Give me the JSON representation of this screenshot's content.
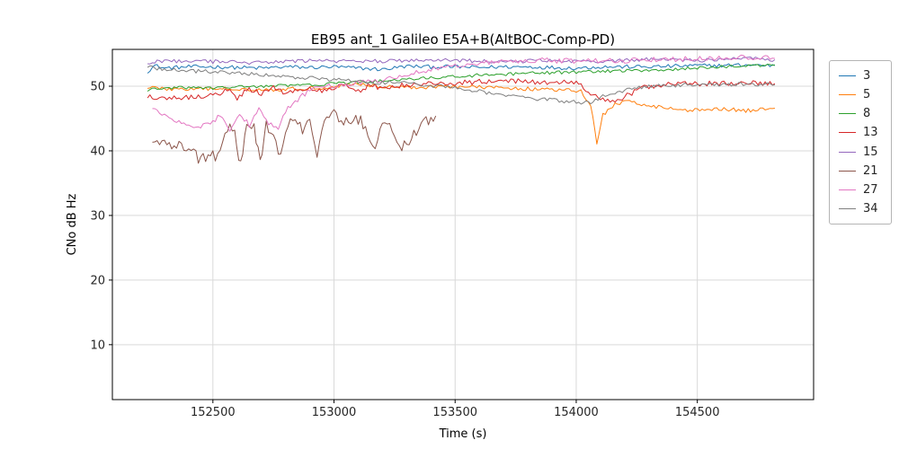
{
  "chart_data": {
    "type": "line",
    "title": "EB95 ant_1 Galileo E5A+B(AltBOC-Comp-PD)",
    "xlabel": "Time (s)",
    "ylabel": "CNo dB Hz",
    "xlim": [
      152085,
      154980
    ],
    "ylim": [
      1.5,
      55.7
    ],
    "xticks": [
      152500,
      153000,
      153500,
      154000,
      154500
    ],
    "yticks": [
      10,
      20,
      30,
      40,
      50
    ],
    "grid": true,
    "grid_color": "#d9d9d9",
    "legend_position": "outside-right",
    "series": [
      {
        "name": "3",
        "color": "#1f77b4",
        "noise": 0.3,
        "points": [
          [
            152230,
            52.3
          ],
          [
            152260,
            53.2
          ],
          [
            152300,
            52.8
          ],
          [
            152400,
            53.0
          ],
          [
            152500,
            53.0
          ],
          [
            152600,
            52.9
          ],
          [
            152700,
            52.8
          ],
          [
            152800,
            53.0
          ],
          [
            152900,
            52.9
          ],
          [
            153000,
            53.0
          ],
          [
            153100,
            52.8
          ],
          [
            153200,
            52.6
          ],
          [
            153300,
            53.1
          ],
          [
            153400,
            53.0
          ],
          [
            153500,
            53.0
          ],
          [
            153600,
            52.9
          ],
          [
            153700,
            53.0
          ],
          [
            153800,
            53.0
          ],
          [
            153900,
            52.9
          ],
          [
            154000,
            52.8
          ],
          [
            154100,
            53.0
          ],
          [
            154200,
            53.0
          ],
          [
            154300,
            53.0
          ],
          [
            154400,
            53.1
          ],
          [
            154500,
            53.2
          ],
          [
            154600,
            53.2
          ],
          [
            154700,
            53.3
          ],
          [
            154820,
            53.2
          ]
        ]
      },
      {
        "name": "5",
        "color": "#ff7f0e",
        "noise": 0.3,
        "points": [
          [
            152230,
            49.9
          ],
          [
            152300,
            49.6
          ],
          [
            152400,
            49.5
          ],
          [
            152500,
            49.6
          ],
          [
            152600,
            49.6
          ],
          [
            152700,
            49.5
          ],
          [
            152800,
            49.5
          ],
          [
            152900,
            49.7
          ],
          [
            153000,
            49.9
          ],
          [
            153080,
            50.4
          ],
          [
            153150,
            50.1
          ],
          [
            153250,
            49.9
          ],
          [
            153350,
            49.8
          ],
          [
            153450,
            50.0
          ],
          [
            153550,
            49.9
          ],
          [
            153650,
            49.8
          ],
          [
            153750,
            49.7
          ],
          [
            153850,
            49.5
          ],
          [
            153950,
            49.4
          ],
          [
            154020,
            49.2
          ],
          [
            154060,
            47.0
          ],
          [
            154085,
            41.3
          ],
          [
            154110,
            45.5
          ],
          [
            154160,
            47.3
          ],
          [
            154220,
            47.6
          ],
          [
            154280,
            47.2
          ],
          [
            154340,
            46.8
          ],
          [
            154400,
            46.5
          ],
          [
            154460,
            46.3
          ],
          [
            154520,
            46.3
          ],
          [
            154580,
            46.6
          ],
          [
            154640,
            46.4
          ],
          [
            154700,
            46.2
          ],
          [
            154760,
            46.4
          ],
          [
            154820,
            46.6
          ]
        ]
      },
      {
        "name": "8",
        "color": "#2ca02c",
        "noise": 0.25,
        "points": [
          [
            152230,
            49.4
          ],
          [
            152300,
            49.7
          ],
          [
            152400,
            49.8
          ],
          [
            152500,
            49.7
          ],
          [
            152600,
            49.9
          ],
          [
            152700,
            50.0
          ],
          [
            152800,
            50.1
          ],
          [
            152900,
            50.2
          ],
          [
            153000,
            50.4
          ],
          [
            153100,
            50.6
          ],
          [
            153200,
            50.8
          ],
          [
            153300,
            51.0
          ],
          [
            153400,
            51.3
          ],
          [
            153500,
            51.5
          ],
          [
            153600,
            51.7
          ],
          [
            153700,
            51.8
          ],
          [
            153800,
            52.0
          ],
          [
            153900,
            52.1
          ],
          [
            154000,
            52.2
          ],
          [
            154100,
            52.3
          ],
          [
            154200,
            52.4
          ],
          [
            154300,
            52.5
          ],
          [
            154400,
            52.6
          ],
          [
            154500,
            52.8
          ],
          [
            154600,
            53.0
          ],
          [
            154700,
            53.2
          ],
          [
            154820,
            53.3
          ]
        ]
      },
      {
        "name": "13",
        "color": "#d62728",
        "noise": 0.4,
        "points": [
          [
            152230,
            48.4
          ],
          [
            152300,
            48.2
          ],
          [
            152400,
            48.3
          ],
          [
            152500,
            48.6
          ],
          [
            152560,
            49.4
          ],
          [
            152600,
            48.2
          ],
          [
            152650,
            49.6
          ],
          [
            152700,
            48.8
          ],
          [
            152750,
            49.8
          ],
          [
            152800,
            49.0
          ],
          [
            152850,
            49.4
          ],
          [
            152900,
            49.6
          ],
          [
            152950,
            49.2
          ],
          [
            153000,
            49.8
          ],
          [
            153050,
            50.4
          ],
          [
            153100,
            49.2
          ],
          [
            153150,
            50.2
          ],
          [
            153200,
            49.6
          ],
          [
            153250,
            50.0
          ],
          [
            153300,
            50.2
          ],
          [
            153400,
            50.4
          ],
          [
            153500,
            50.5
          ],
          [
            153600,
            50.7
          ],
          [
            153700,
            50.8
          ],
          [
            153800,
            50.7
          ],
          [
            153900,
            50.6
          ],
          [
            154000,
            50.5
          ],
          [
            154060,
            49.0
          ],
          [
            154110,
            47.8
          ],
          [
            154160,
            47.6
          ],
          [
            154220,
            48.8
          ],
          [
            154280,
            49.8
          ],
          [
            154340,
            50.2
          ],
          [
            154400,
            50.3
          ],
          [
            154500,
            50.4
          ],
          [
            154600,
            50.4
          ],
          [
            154700,
            50.5
          ],
          [
            154820,
            50.4
          ]
        ]
      },
      {
        "name": "15",
        "color": "#9467bd",
        "noise": 0.3,
        "points": [
          [
            152230,
            53.6
          ],
          [
            152300,
            54.0
          ],
          [
            152400,
            53.8
          ],
          [
            152500,
            53.8
          ],
          [
            152600,
            53.7
          ],
          [
            152700,
            53.6
          ],
          [
            152800,
            53.8
          ],
          [
            152900,
            54.0
          ],
          [
            153000,
            53.9
          ],
          [
            153100,
            53.8
          ],
          [
            153200,
            53.9
          ],
          [
            153300,
            54.0
          ],
          [
            153400,
            54.0
          ],
          [
            153500,
            54.0
          ],
          [
            153600,
            53.9
          ],
          [
            153700,
            53.8
          ],
          [
            153800,
            53.9
          ],
          [
            153900,
            54.0
          ],
          [
            154000,
            53.9
          ],
          [
            154100,
            53.8
          ],
          [
            154200,
            54.0
          ],
          [
            154300,
            54.2
          ],
          [
            154400,
            54.1
          ],
          [
            154500,
            54.0
          ],
          [
            154600,
            54.1
          ],
          [
            154700,
            54.3
          ],
          [
            154820,
            54.1
          ]
        ]
      },
      {
        "name": "21",
        "color": "#8c564b",
        "noise": 1.0,
        "points": [
          [
            152250,
            41.6
          ],
          [
            152300,
            41.2
          ],
          [
            152350,
            40.8
          ],
          [
            152400,
            40.3
          ],
          [
            152440,
            39.0
          ],
          [
            152480,
            38.7
          ],
          [
            152520,
            39.6
          ],
          [
            152560,
            43.8
          ],
          [
            152590,
            43.0
          ],
          [
            152615,
            37.6
          ],
          [
            152640,
            44.4
          ],
          [
            152670,
            43.2
          ],
          [
            152695,
            38.2
          ],
          [
            152720,
            44.0
          ],
          [
            152750,
            42.0
          ],
          [
            152780,
            39.5
          ],
          [
            152810,
            44.6
          ],
          [
            152840,
            45.0
          ],
          [
            152870,
            43.0
          ],
          [
            152900,
            44.2
          ],
          [
            152930,
            39.2
          ],
          [
            152960,
            45.2
          ],
          [
            153000,
            45.5
          ],
          [
            153040,
            44.0
          ],
          [
            153080,
            45.0
          ],
          [
            153120,
            44.4
          ],
          [
            153160,
            40.2
          ],
          [
            153200,
            44.6
          ],
          [
            153240,
            44.0
          ],
          [
            153270,
            40.6
          ],
          [
            153300,
            41.0
          ],
          [
            153340,
            43.2
          ],
          [
            153380,
            44.4
          ],
          [
            153420,
            45.4
          ]
        ]
      },
      {
        "name": "27",
        "color": "#e377c2",
        "noise": 0.4,
        "points": [
          [
            152250,
            46.6
          ],
          [
            152290,
            45.6
          ],
          [
            152330,
            44.8
          ],
          [
            152370,
            44.2
          ],
          [
            152410,
            43.9
          ],
          [
            152450,
            43.7
          ],
          [
            152490,
            44.3
          ],
          [
            152530,
            45.4
          ],
          [
            152570,
            43.2
          ],
          [
            152610,
            45.8
          ],
          [
            152650,
            44.0
          ],
          [
            152690,
            46.4
          ],
          [
            152730,
            44.2
          ],
          [
            152770,
            43.6
          ],
          [
            152810,
            46.8
          ],
          [
            152850,
            48.0
          ],
          [
            152900,
            49.4
          ],
          [
            152950,
            49.9
          ],
          [
            153050,
            50.3
          ],
          [
            153150,
            50.8
          ],
          [
            153250,
            51.4
          ],
          [
            153350,
            52.2
          ],
          [
            153450,
            53.0
          ],
          [
            153550,
            53.5
          ],
          [
            153700,
            53.8
          ],
          [
            153850,
            54.0
          ],
          [
            154000,
            53.9
          ],
          [
            154150,
            53.9
          ],
          [
            154300,
            54.1
          ],
          [
            154450,
            54.2
          ],
          [
            154600,
            54.3
          ],
          [
            154700,
            54.5
          ],
          [
            154820,
            54.3
          ]
        ]
      },
      {
        "name": "34",
        "color": "#7f7f7f",
        "noise": 0.3,
        "points": [
          [
            152230,
            52.9
          ],
          [
            152300,
            52.6
          ],
          [
            152400,
            52.4
          ],
          [
            152500,
            52.2
          ],
          [
            152600,
            52.0
          ],
          [
            152700,
            51.8
          ],
          [
            152800,
            51.5
          ],
          [
            152900,
            51.3
          ],
          [
            153000,
            51.0
          ],
          [
            153100,
            50.8
          ],
          [
            153200,
            50.5
          ],
          [
            153280,
            50.8
          ],
          [
            153360,
            50.2
          ],
          [
            153440,
            50.0
          ],
          [
            153520,
            49.7
          ],
          [
            153600,
            49.2
          ],
          [
            153680,
            48.7
          ],
          [
            153760,
            48.3
          ],
          [
            153840,
            48.0
          ],
          [
            153920,
            47.8
          ],
          [
            154000,
            47.5
          ],
          [
            154060,
            47.4
          ],
          [
            154120,
            48.6
          ],
          [
            154200,
            49.4
          ],
          [
            154280,
            49.9
          ],
          [
            154360,
            50.1
          ],
          [
            154450,
            50.2
          ],
          [
            154550,
            50.2
          ],
          [
            154650,
            50.3
          ],
          [
            154750,
            50.2
          ],
          [
            154820,
            50.2
          ]
        ]
      }
    ],
    "legend_labels": [
      "3",
      "5",
      "8",
      "13",
      "15",
      "21",
      "27",
      "34"
    ]
  }
}
